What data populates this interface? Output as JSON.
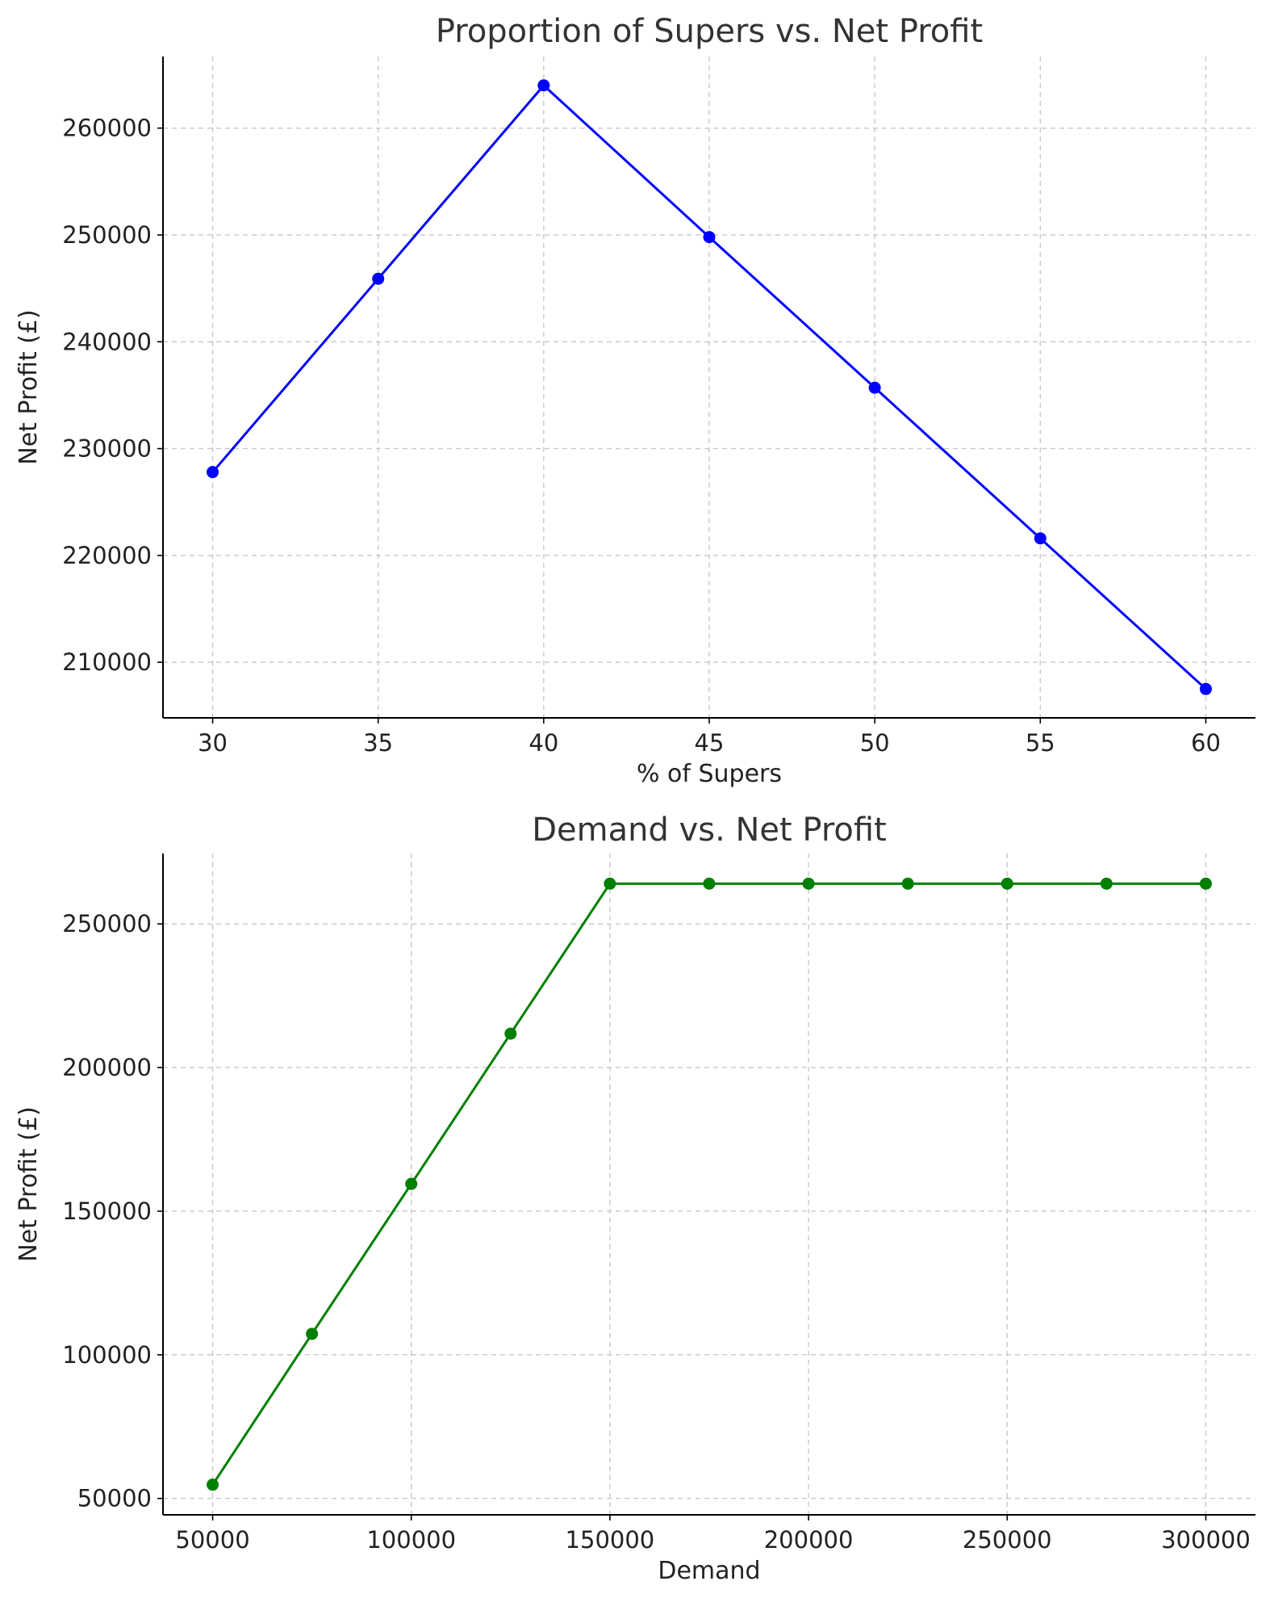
{
  "chart_data": [
    {
      "type": "line",
      "title": "Proportion of Supers vs. Net Profit",
      "xlabel": "% of Supers",
      "ylabel": "Net Profit (£)",
      "x": [
        30,
        35,
        40,
        45,
        50,
        55,
        60
      ],
      "series": [
        {
          "values": [
            227800,
            245900,
            264000,
            249800,
            235700,
            221600,
            207500
          ],
          "color": "#0000ff"
        }
      ],
      "xticks": [
        30,
        35,
        40,
        45,
        50,
        55,
        60
      ],
      "yticks": [
        210000,
        220000,
        230000,
        240000,
        250000,
        260000
      ],
      "xlim": [
        28.5,
        61.5
      ],
      "ylim": [
        204800,
        266700
      ],
      "grid": true,
      "marker": "circle"
    },
    {
      "type": "line",
      "title": "Demand vs. Net Profit",
      "xlabel": "Demand",
      "ylabel": "Net Profit (£)",
      "x": [
        50000,
        75000,
        100000,
        125000,
        150000,
        175000,
        200000,
        225000,
        250000,
        275000,
        300000
      ],
      "series": [
        {
          "values": [
            54800,
            107300,
            159500,
            211800,
            264000,
            264000,
            264000,
            264000,
            264000,
            264000,
            264000
          ],
          "color": "#008000"
        }
      ],
      "xticks": [
        50000,
        100000,
        150000,
        200000,
        250000,
        300000
      ],
      "yticks": [
        50000,
        100000,
        150000,
        200000,
        250000
      ],
      "xlim": [
        37500,
        312500
      ],
      "ylim": [
        44300,
        274500
      ],
      "grid": true,
      "marker": "circle"
    }
  ]
}
